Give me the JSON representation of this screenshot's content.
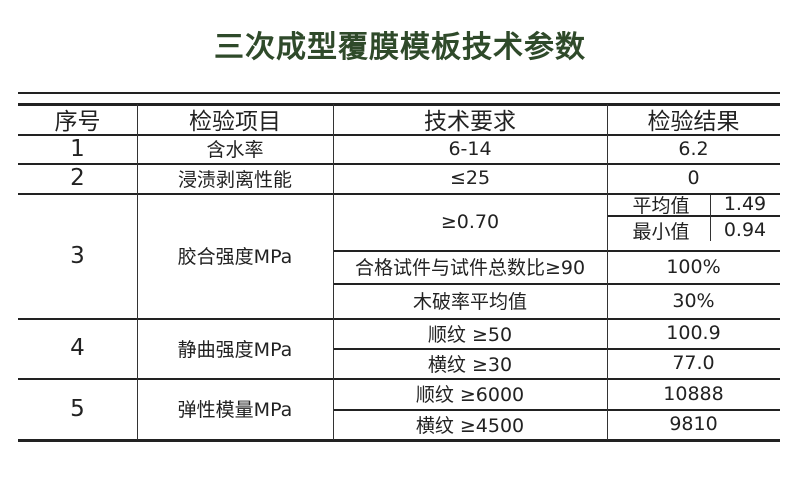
{
  "title": "三次成型覆膜模板技术参数",
  "headers": [
    "序号",
    "检验项目",
    "技术要求",
    "检验结果"
  ],
  "rows": [
    {
      "no": "1",
      "item": "含水率",
      "req": "6-14",
      "result": "6.2"
    },
    {
      "no": "2",
      "item": "浸渍剥离性能",
      "req": "≤25",
      "result": "0"
    },
    {
      "no": "3",
      "item": "胶合强度MPa",
      "sub": [
        {
          "req": "≥0.70",
          "results": [
            {
              "label": "平均值",
              "value": "1.49"
            },
            {
              "label": "最小值",
              "value": "0.94"
            }
          ]
        },
        {
          "req": "合格试件与试件总数比≥90",
          "result": "100%"
        },
        {
          "req": "木破率平均值",
          "result": "30%"
        }
      ]
    },
    {
      "no": "4",
      "item": "静曲强度MPa",
      "sub": [
        {
          "req": "顺纹 ≥50",
          "result": "100.9"
        },
        {
          "req": "横纹 ≥30",
          "result": "77.0"
        }
      ]
    },
    {
      "no": "5",
      "item": "弹性模量MPa",
      "sub": [
        {
          "req": "顺纹 ≥6000",
          "result": "10888"
        },
        {
          "req": "横纹 ≥4500",
          "result": "9810"
        }
      ]
    }
  ]
}
